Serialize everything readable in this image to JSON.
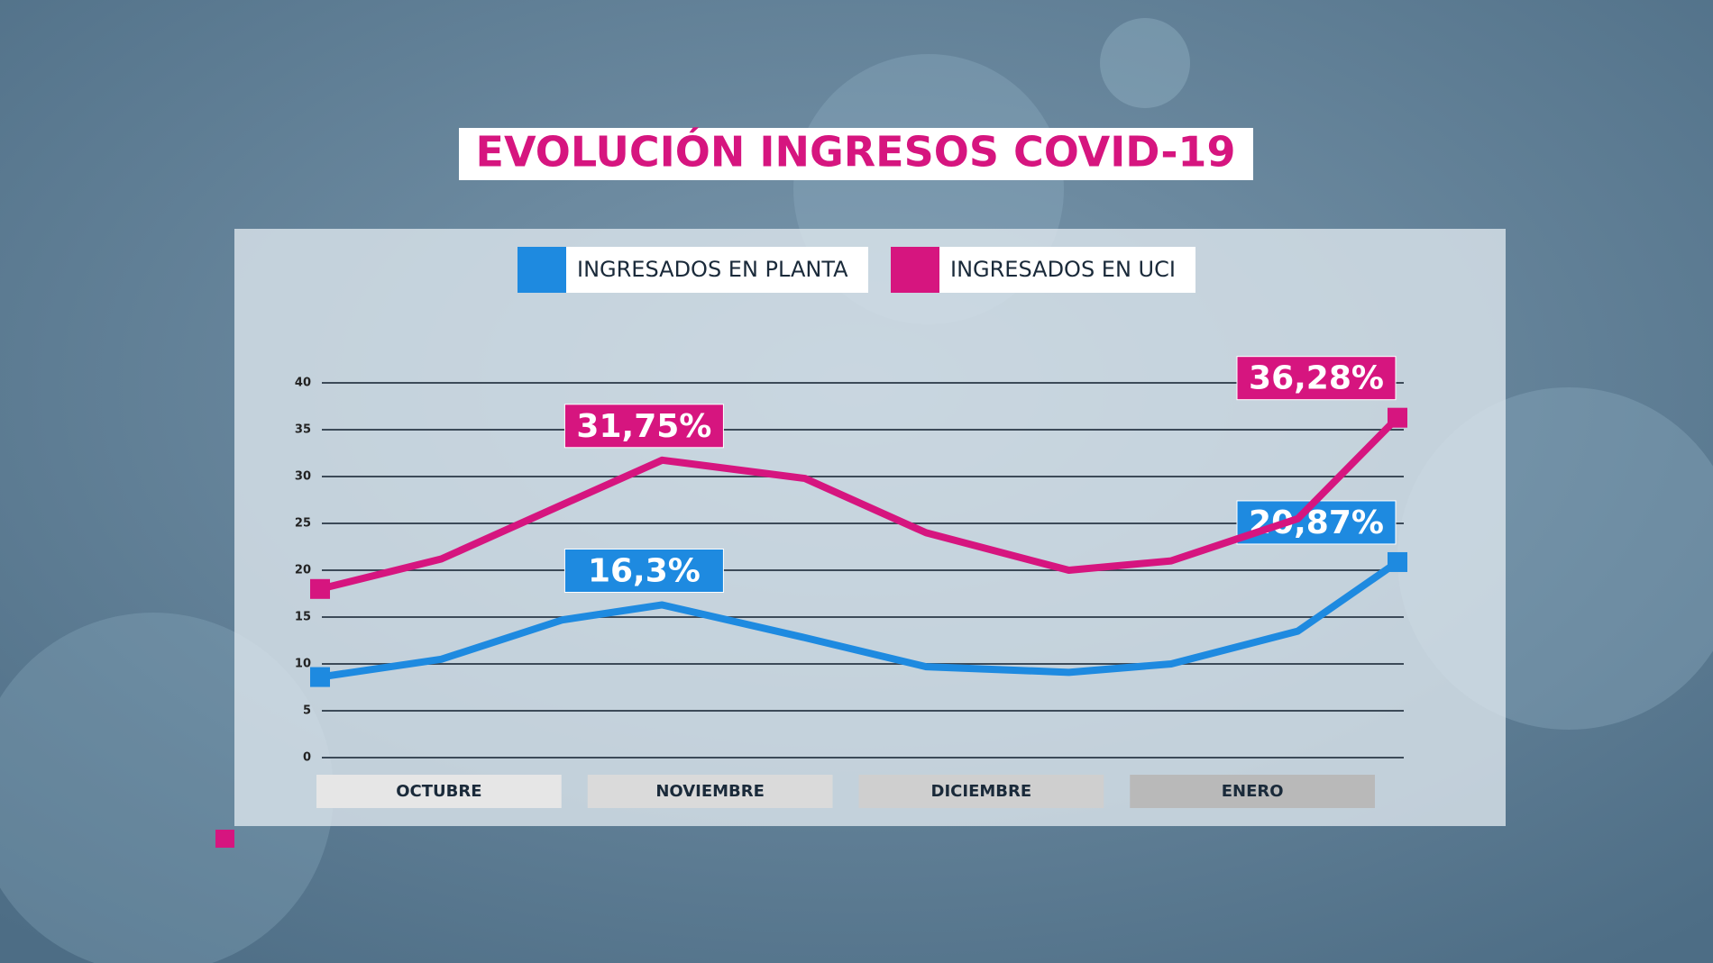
{
  "chart_data": {
    "type": "line",
    "title": "EVOLUCIÓN INGRESOS COVID-19",
    "categories": [
      "OCTUBRE",
      "NOVIEMBRE",
      "DICIEMBRE",
      "ENERO"
    ],
    "x": [
      0,
      0.45,
      0.9,
      1.27,
      1.8,
      2.25,
      2.78,
      3.16,
      3.63,
      4
    ],
    "xlim": [
      0,
      4
    ],
    "series": [
      {
        "name": "INGRESADOS EN PLANTA",
        "color": "#1e8ae0",
        "values": [
          8.6,
          10.5,
          14.7,
          16.3,
          12.8,
          9.7,
          9.1,
          10,
          13.5,
          20.87
        ],
        "value_labels": [
          null,
          null,
          null,
          "16,3%",
          null,
          null,
          null,
          null,
          null,
          "20,87%"
        ]
      },
      {
        "name": "INGRESADOS EN UCI",
        "color": "#d6157f",
        "values": [
          18,
          21.2,
          27,
          31.75,
          29.8,
          24,
          20,
          21,
          25.5,
          36.28
        ],
        "value_labels": [
          null,
          null,
          null,
          "31,75%",
          null,
          null,
          null,
          null,
          null,
          "36,28%"
        ]
      }
    ],
    "ylim": [
      0,
      40
    ],
    "yticks": [
      0,
      5,
      10,
      15,
      20,
      25,
      30,
      35,
      40
    ],
    "grid": true
  }
}
